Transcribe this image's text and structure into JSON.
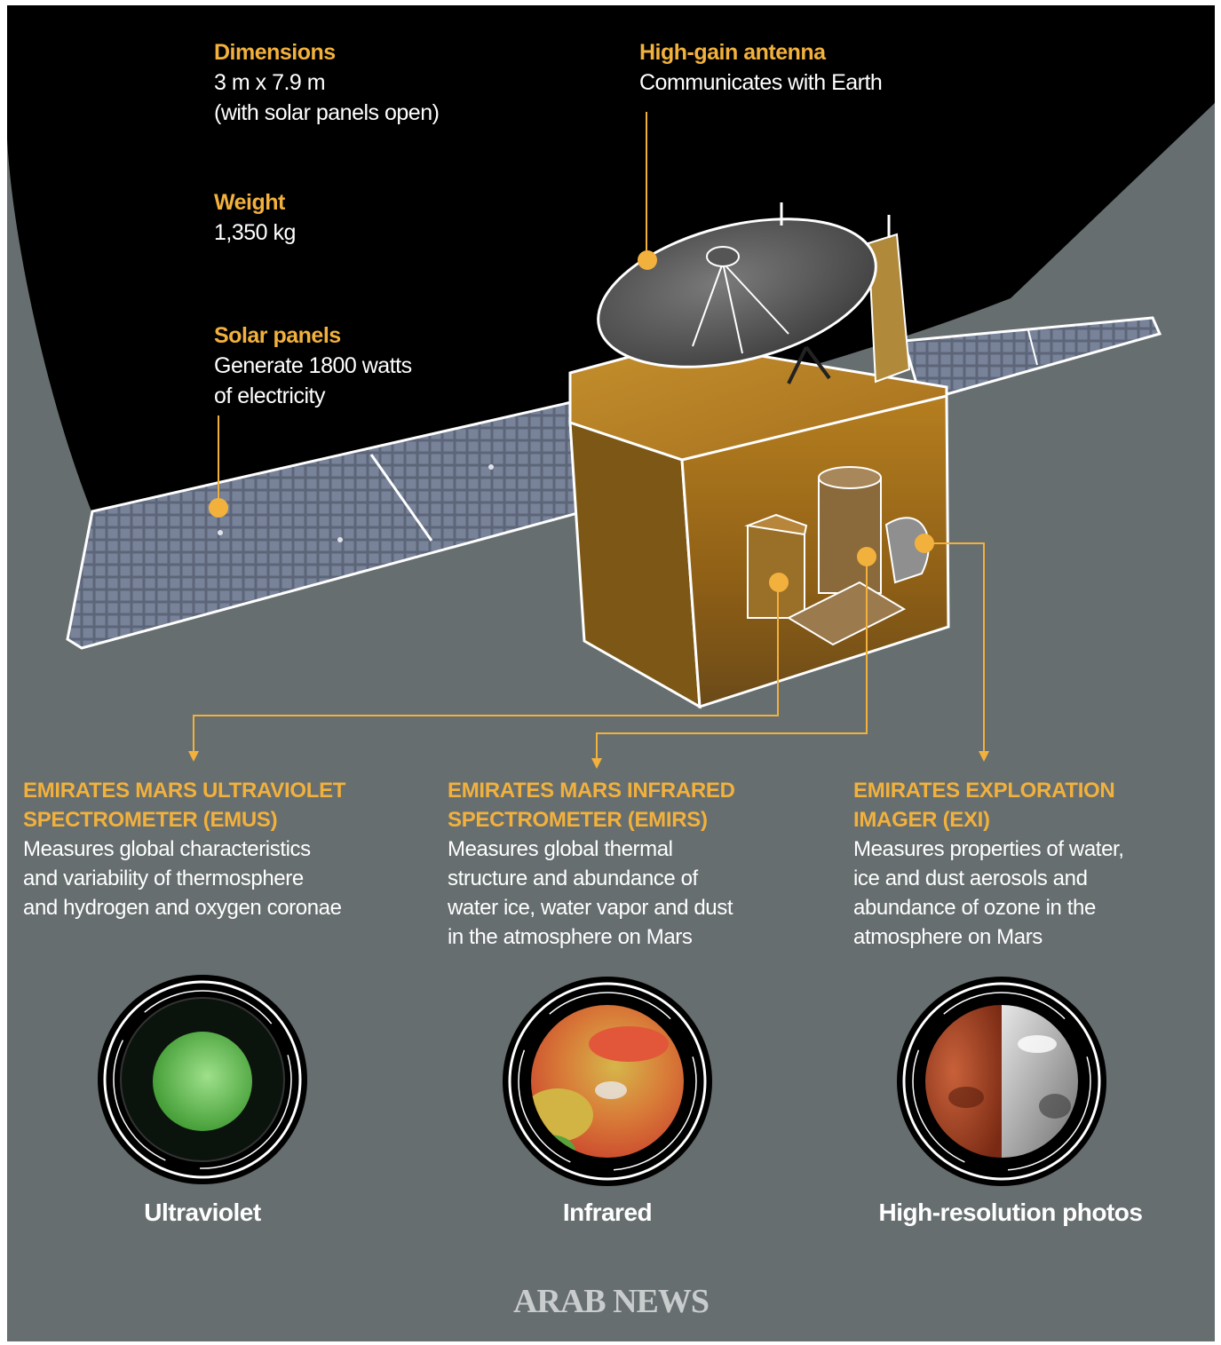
{
  "specs": {
    "dimensions": {
      "title": "Dimensions",
      "line1": "3 m x 7.9 m",
      "line2": "(with solar panels open)"
    },
    "weight": {
      "title": "Weight",
      "line1": "1,350 kg"
    },
    "solar": {
      "title": "Solar panels",
      "line1": "Generate 1800 watts",
      "line2": "of electricity"
    },
    "antenna": {
      "title": "High-gain antenna",
      "line1": "Communicates with Earth"
    }
  },
  "instruments": [
    {
      "heading1": "EMIRATES MARS ULTRAVIOLET",
      "heading2": "SPECTROMETER (EMUS)",
      "desc": [
        "Measures global characteristics",
        "and variability of thermosphere",
        "and hydrogen and oxygen coronae"
      ],
      "caption": "Ultraviolet"
    },
    {
      "heading1": "EMIRATES MARS INFRARED",
      "heading2": "SPECTROMETER (EMIRS)",
      "desc": [
        "Measures global thermal",
        "structure and abundance of",
        "water ice, water vapor and dust",
        "in the atmosphere on Mars"
      ],
      "caption": "Infrared"
    },
    {
      "heading1": "EMIRATES EXPLORATION",
      "heading2": "IMAGER (EXI)",
      "desc": [
        "Measures properties of water,",
        "ice and dust aerosols and",
        "abundance of ozone in the",
        "atmosphere on Mars"
      ],
      "caption": "High-resolution photos"
    }
  ],
  "brand": "ARAB NEWS",
  "colors": {
    "accent": "#f2b13c",
    "background": "#676e6f",
    "space": "#000000"
  }
}
